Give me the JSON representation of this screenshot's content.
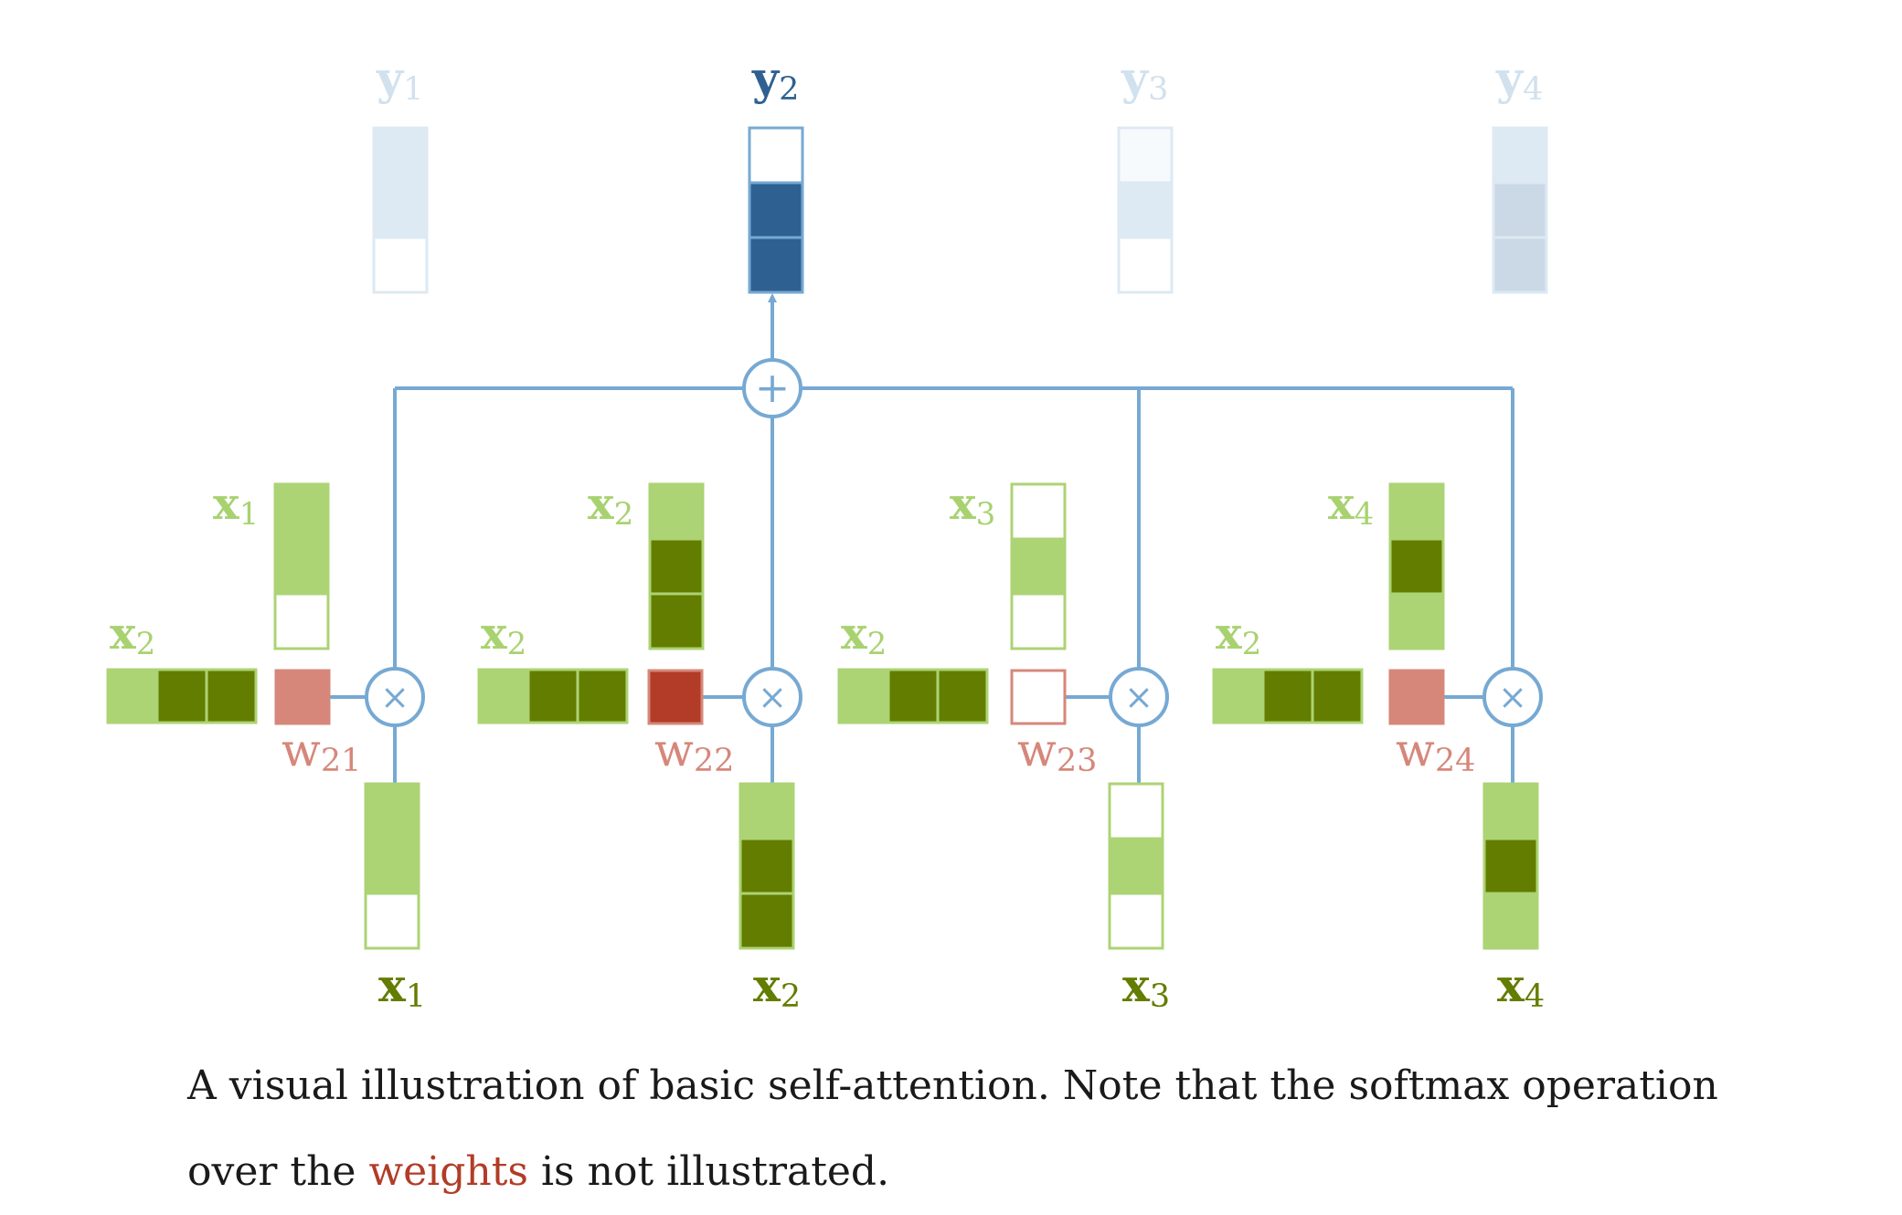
{
  "colors": {
    "line": "#76a9d3",
    "y_active_fill": "#2e6191",
    "y_active_stroke": "#76a9d3",
    "x_light": "#acd374",
    "x_dark": "#637d00",
    "x_label_light": "#a8d270",
    "x_label_dark": "#637d00",
    "w_dim": "#d6877a",
    "w_active": "#b23c27",
    "w_label": "#d6877a",
    "caption_text": "#1a1a1a",
    "caption_link": "#b23c27"
  },
  "outputs": [
    {
      "main": "y",
      "sub": "1",
      "cells": [
        "#dde9f3",
        "#dde9f3",
        "#ffffff"
      ],
      "stroke": "#dde9f3",
      "label_color": "#d1e1ee"
    },
    {
      "main": "y",
      "sub": "2",
      "cells": [
        "#ffffff",
        "#2e6191",
        "#2e6191"
      ],
      "stroke": "#76a9d3",
      "label_color": "#2e6191"
    },
    {
      "main": "y",
      "sub": "3",
      "cells": [
        "#f7fafd",
        "#dde9f3",
        "#ffffff"
      ],
      "stroke": "#dde9f3",
      "label_color": "#d1e1ee"
    },
    {
      "main": "y",
      "sub": "4",
      "cells": [
        "#dde9f3",
        "#cbd9e6",
        "#cbd9e6"
      ],
      "stroke": "#dde9f3",
      "label_color": "#d1e1ee"
    }
  ],
  "combine": {
    "symbol": "+"
  },
  "groups": [
    {
      "key": {
        "main": "x",
        "sub": "1"
      },
      "query": {
        "main": "x",
        "sub": "2"
      },
      "weight": {
        "main": "w",
        "sub": "21",
        "fill": "#d6877a"
      },
      "value": {
        "main": "x",
        "sub": "1"
      },
      "multiply_symbol": "×",
      "pattern": [
        "L",
        "L",
        "W"
      ]
    },
    {
      "key": {
        "main": "x",
        "sub": "2"
      },
      "query": {
        "main": "x",
        "sub": "2"
      },
      "weight": {
        "main": "w",
        "sub": "22",
        "fill": "#b23c27"
      },
      "value": {
        "main": "x",
        "sub": "2"
      },
      "multiply_symbol": "×",
      "pattern": [
        "L",
        "D",
        "D"
      ]
    },
    {
      "key": {
        "main": "x",
        "sub": "3"
      },
      "query": {
        "main": "x",
        "sub": "2"
      },
      "weight": {
        "main": "w",
        "sub": "23",
        "fill": "#ffffff"
      },
      "value": {
        "main": "x",
        "sub": "3"
      },
      "multiply_symbol": "×",
      "pattern": [
        "W",
        "L",
        "W"
      ]
    },
    {
      "key": {
        "main": "x",
        "sub": "4"
      },
      "query": {
        "main": "x",
        "sub": "2"
      },
      "weight": {
        "main": "w",
        "sub": "24",
        "fill": "#d6877a"
      },
      "value": {
        "main": "x",
        "sub": "4"
      },
      "multiply_symbol": "×",
      "pattern": [
        "L",
        "D",
        "L"
      ]
    }
  ],
  "caption": {
    "before": "A visual illustration of basic self-attention. Note that the softmax operation over the ",
    "link": "weights",
    "after": " is not illustrated."
  }
}
